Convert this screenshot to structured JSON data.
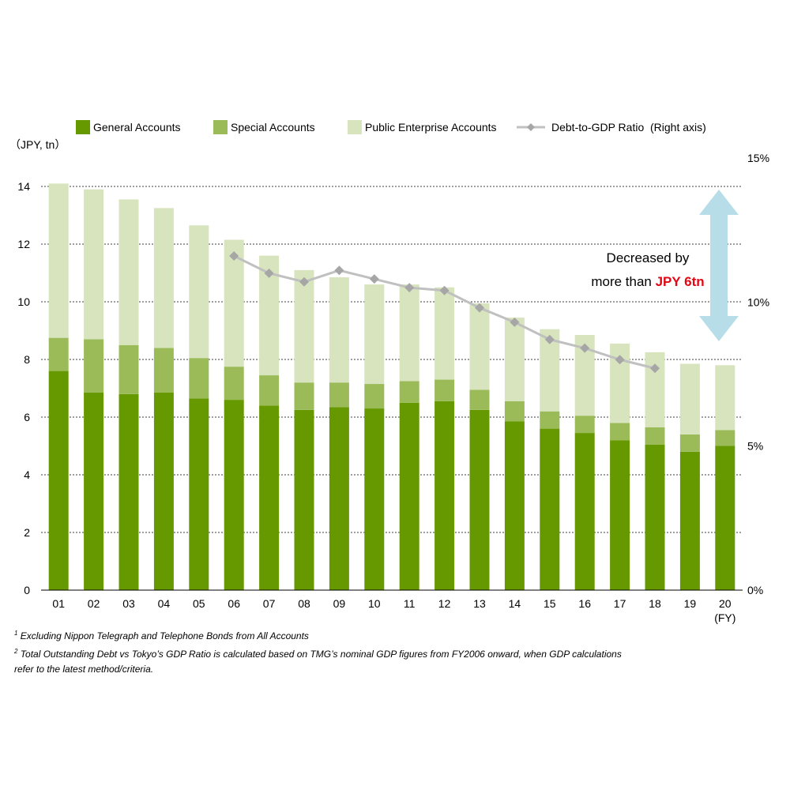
{
  "legend": {
    "general": "General Accounts",
    "special": "Special Accounts",
    "public": "Public Enterprise Accounts",
    "ratio": "Debt-to-GDP Ratio  (Right axis)"
  },
  "unit_label": "（JPY, tn）",
  "fy_label": "(FY)",
  "annotation": {
    "line1": "Decreased by",
    "line2_prefix": "more than ",
    "line2_highlight": "JPY 6tn"
  },
  "footnotes": {
    "n1_mark": "1",
    "n1_text": "Excluding Nippon Telegraph and Telephone Bonds from All Accounts",
    "n2_mark": "2",
    "n2_text": "Total Outstanding Debt vs Tokyo’s GDP Ratio is calculated based on TMG’s nominal GDP figures from FY2006 onward, when GDP calculations",
    "n2_text_cont": "refer to the latest method/criteria."
  },
  "colors": {
    "general": "#669900",
    "special": "#9bbb59",
    "public": "#d7e4bd",
    "ratio_line": "#c0c0c0",
    "ratio_marker": "#a6a6a6",
    "arrow": "#b7dde8",
    "highlight": "#e30613"
  },
  "chart_data": {
    "type": "bar",
    "stacked": true,
    "categories": [
      "01",
      "02",
      "03",
      "04",
      "05",
      "06",
      "07",
      "08",
      "09",
      "10",
      "11",
      "12",
      "13",
      "14",
      "15",
      "16",
      "17",
      "18",
      "19",
      "20"
    ],
    "series": [
      {
        "name": "General Accounts",
        "values": [
          7.6,
          6.85,
          6.8,
          6.85,
          6.65,
          6.6,
          6.4,
          6.25,
          6.35,
          6.3,
          6.5,
          6.55,
          6.25,
          5.85,
          5.6,
          5.45,
          5.2,
          5.05,
          4.8,
          5.0
        ]
      },
      {
        "name": "Special Accounts",
        "values": [
          1.15,
          1.85,
          1.7,
          1.55,
          1.4,
          1.15,
          1.05,
          0.95,
          0.85,
          0.85,
          0.75,
          0.75,
          0.7,
          0.7,
          0.6,
          0.6,
          0.6,
          0.6,
          0.6,
          0.55
        ]
      },
      {
        "name": "Public Enterprise Accounts",
        "values": [
          5.35,
          5.2,
          5.05,
          4.85,
          4.6,
          4.4,
          4.15,
          3.9,
          3.65,
          3.45,
          3.35,
          3.2,
          3.0,
          2.9,
          2.85,
          2.8,
          2.75,
          2.6,
          2.45,
          2.25
        ]
      }
    ],
    "line_series": {
      "name": "Debt-to-GDP Ratio  (Right axis)",
      "axis": "right",
      "values": [
        null,
        null,
        null,
        null,
        null,
        11.6,
        11.0,
        10.7,
        11.1,
        10.8,
        10.5,
        10.4,
        9.8,
        9.3,
        8.7,
        8.4,
        8.0,
        7.7,
        null,
        null
      ]
    },
    "ylim": [
      0,
      14
    ],
    "yticks": [
      0,
      2,
      4,
      6,
      8,
      10,
      12,
      14
    ],
    "y2lim": [
      0,
      15
    ],
    "y2ticks": [
      "0%",
      "5%",
      "10%",
      "15%"
    ],
    "grid": true,
    "legend_position": "top",
    "unit": "（JPY, tn）",
    "xlabel_suffix": "(FY)"
  }
}
